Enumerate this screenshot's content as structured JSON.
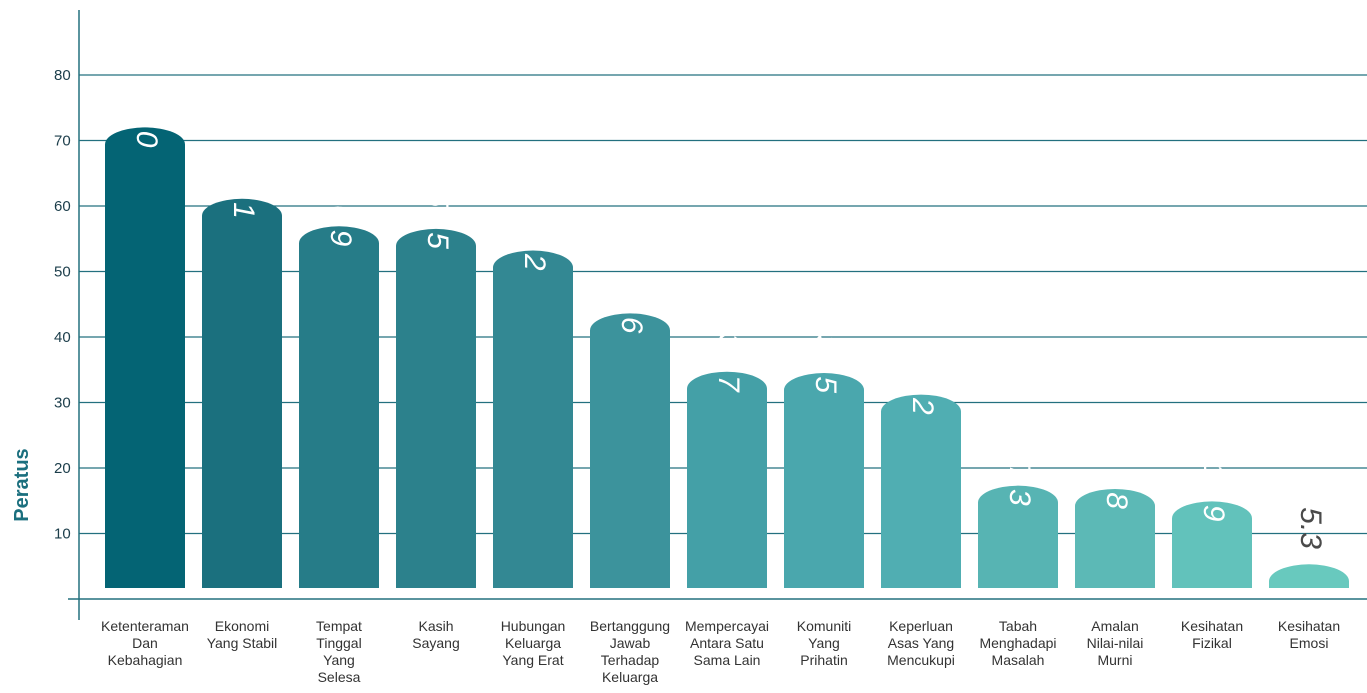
{
  "chart_data": {
    "type": "bar",
    "ylabel": "Peratus",
    "xlabel": "",
    "ylim": [
      0,
      80
    ],
    "yticks": [
      10,
      20,
      30,
      40,
      50,
      60,
      70,
      80
    ],
    "grid": true,
    "categories": [
      [
        "Ketenteraman",
        "Dan",
        "Kebahagian"
      ],
      [
        "Ekonomi",
        "Yang Stabil"
      ],
      [
        "Tempat",
        "Tinggal",
        "Yang",
        "Selesa"
      ],
      [
        "Kasih",
        "Sayang"
      ],
      [
        "Hubungan",
        "Keluarga",
        "Yang Erat"
      ],
      [
        "Bertanggung",
        "Jawab",
        "Terhadap",
        "Keluarga"
      ],
      [
        "Mempercayai",
        "Antara Satu",
        "Sama Lain"
      ],
      [
        "Komuniti",
        "Yang",
        "Prihatin"
      ],
      [
        "Keperluan",
        "Asas Yang",
        "Mencukupi"
      ],
      [
        "Tabah",
        "Menghadapi",
        "Masalah"
      ],
      [
        "Amalan",
        "Nilai-nilai",
        "Murni"
      ],
      [
        "Kesihatan",
        "Fizikal"
      ],
      [
        "Kesihatan",
        "Emosi"
      ]
    ],
    "values": [
      72.0,
      61.1,
      56.9,
      56.5,
      53.2,
      43.6,
      34.7,
      34.5,
      31.2,
      17.3,
      16.8,
      14.9,
      5.3
    ],
    "value_labels": [
      "72.0",
      "61.1",
      "56.9",
      "56.5",
      "53.2",
      "43.6",
      "34.7",
      "34.5",
      "31.2",
      "17.3",
      "16.8",
      "14.9",
      "5.3"
    ],
    "colors": [
      "#046474",
      "#1b707e",
      "#267c88",
      "#2c818c",
      "#338893",
      "#3c939c",
      "#44a0a7",
      "#4aa7ad",
      "#50aeb2",
      "#57b4b3",
      "#5cb9b6",
      "#62c2bb",
      "#68c9be"
    ],
    "grid_color": "#23707f"
  }
}
